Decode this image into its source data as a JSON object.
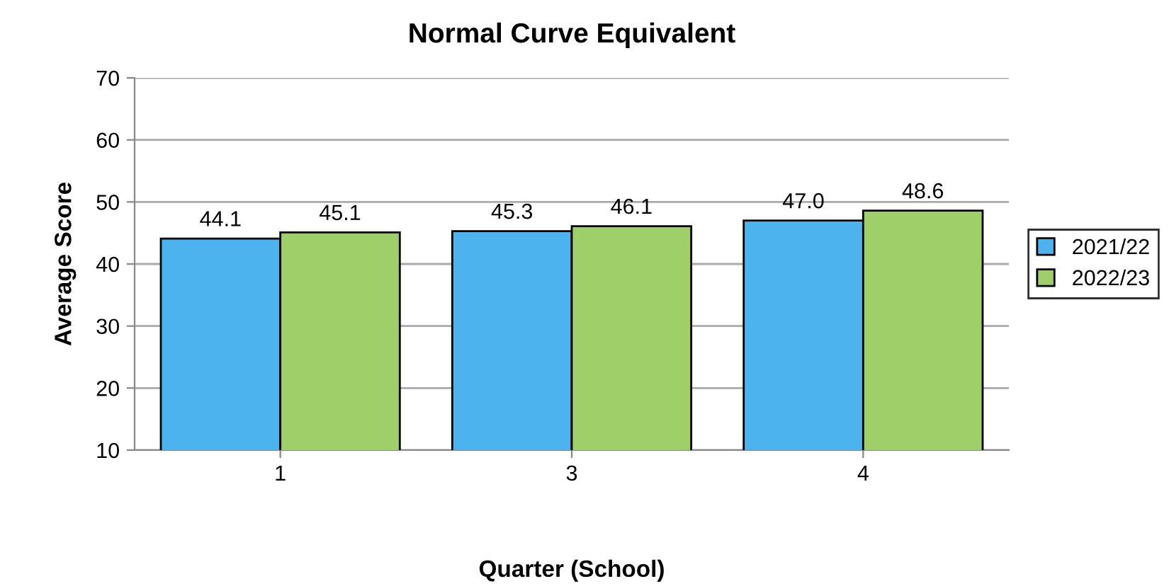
{
  "chart_data": {
    "type": "bar",
    "title": "Normal Curve Equivalent",
    "xlabel": "Quarter (School)",
    "ylabel": "Average Score",
    "categories": [
      "1",
      "3",
      "4"
    ],
    "series": [
      {
        "name": "2021/22",
        "color": "#4db3ef",
        "values": [
          44.1,
          45.3,
          47.0
        ],
        "value_labels": [
          "44.1",
          "45.3",
          "47.0"
        ]
      },
      {
        "name": "2022/23",
        "color": "#9fcf68",
        "values": [
          45.1,
          46.1,
          48.6
        ],
        "value_labels": [
          "45.1",
          "46.1",
          "48.6"
        ]
      }
    ],
    "ylim": [
      10,
      70
    ],
    "yticks": [
      10,
      20,
      30,
      40,
      50,
      60,
      70
    ],
    "grid": "y",
    "legend": "right"
  }
}
